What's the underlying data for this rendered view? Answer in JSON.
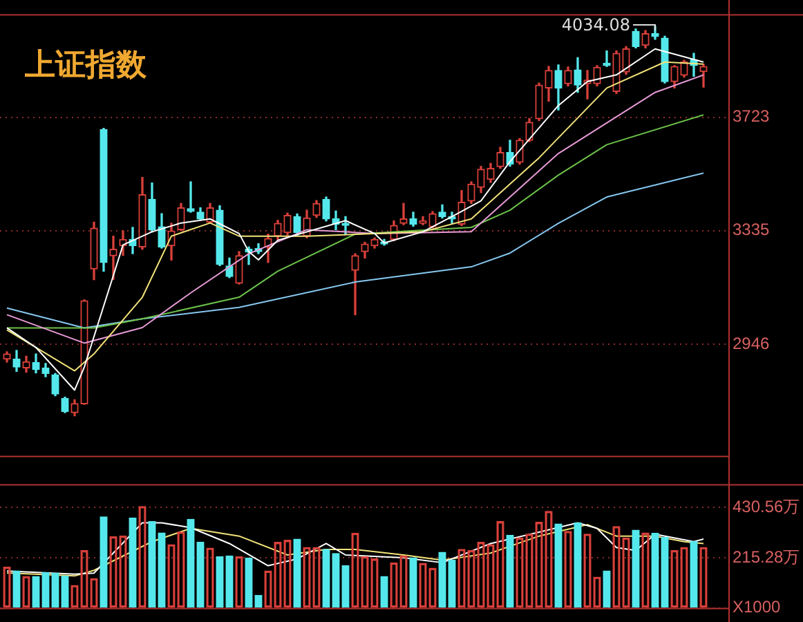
{
  "chart_data": [
    {
      "type": "candlestick",
      "title": "上证指数",
      "categories": [
        null,
        null,
        null,
        null,
        null,
        null,
        null,
        null,
        null,
        null,
        null,
        null,
        null,
        null,
        null,
        null,
        null,
        null,
        null,
        null,
        null,
        null,
        null,
        null,
        null,
        null,
        null,
        null,
        null,
        null,
        null,
        null,
        null,
        null,
        null,
        null,
        null,
        null,
        null,
        null,
        null,
        null,
        null,
        null,
        null,
        null,
        null,
        null,
        null,
        null,
        null,
        null,
        null,
        null,
        null,
        null,
        null,
        null,
        null,
        null,
        null,
        null,
        null,
        null,
        null,
        null,
        null,
        null,
        null,
        null,
        null,
        null,
        null
      ],
      "ohlc": [
        [
          2895,
          2920,
          2885,
          2913
        ],
        [
          2895,
          2925,
          2853,
          2868
        ],
        [
          2865,
          2905,
          2850,
          2886
        ],
        [
          2883,
          2913,
          2848,
          2859
        ],
        [
          2865,
          2880,
          2835,
          2846
        ],
        [
          2841,
          2846,
          2770,
          2776
        ],
        [
          2761,
          2765,
          2712,
          2716
        ],
        [
          2712,
          2756,
          2701,
          2743
        ],
        [
          2742,
          3098,
          2740,
          3095
        ],
        [
          3204,
          3364,
          3167,
          3343
        ],
        [
          3681,
          3685,
          3196,
          3226
        ],
        [
          3249,
          3316,
          3168,
          3271
        ],
        [
          3283,
          3334,
          3250,
          3305
        ],
        [
          3305,
          3346,
          3256,
          3283
        ],
        [
          3279,
          3517,
          3271,
          3458
        ],
        [
          3442,
          3498,
          3330,
          3338
        ],
        [
          3348,
          3393,
          3275,
          3279
        ],
        [
          3283,
          3360,
          3234,
          3334
        ],
        [
          3338,
          3428,
          3335,
          3413
        ],
        [
          3410,
          3502,
          3398,
          3401
        ],
        [
          3398,
          3413,
          3372,
          3375
        ],
        [
          3364,
          3428,
          3360,
          3413
        ],
        [
          3405,
          3420,
          3215,
          3219
        ],
        [
          3214,
          3241,
          3174,
          3178
        ],
        [
          3155,
          3263,
          3152,
          3249
        ],
        [
          3271,
          3279,
          3219,
          3262
        ],
        [
          3274,
          3290,
          3256,
          3263
        ],
        [
          3279,
          3323,
          3226,
          3308
        ],
        [
          3316,
          3370,
          3305,
          3360
        ],
        [
          3328,
          3395,
          3320,
          3387
        ],
        [
          3383,
          3392,
          3320,
          3328
        ],
        [
          3316,
          3405,
          3310,
          3378
        ],
        [
          3387,
          3438,
          3380,
          3428
        ],
        [
          3442,
          3450,
          3368,
          3375
        ],
        [
          3375,
          3402,
          3338,
          3357
        ],
        [
          3360,
          3383,
          3323,
          3353
        ],
        [
          3199,
          3256,
          3047,
          3249
        ],
        [
          3263,
          3295,
          3241,
          3289
        ],
        [
          3283,
          3310,
          3275,
          3305
        ],
        [
          3296,
          3305,
          3285,
          3289
        ],
        [
          3305,
          3368,
          3300,
          3353
        ],
        [
          3360,
          3428,
          3355,
          3375
        ],
        [
          3375,
          3398,
          3350,
          3357
        ],
        [
          3360,
          3383,
          3355,
          3368
        ],
        [
          3348,
          3400,
          3344,
          3393
        ],
        [
          3398,
          3423,
          3378,
          3383
        ],
        [
          3383,
          3398,
          3360,
          3375
        ],
        [
          3357,
          3472,
          3352,
          3432
        ],
        [
          3436,
          3502,
          3428,
          3494
        ],
        [
          3483,
          3555,
          3465,
          3545
        ],
        [
          3510,
          3565,
          3500,
          3548
        ],
        [
          3554,
          3620,
          3548,
          3602
        ],
        [
          3602,
          3644,
          3555,
          3562
        ],
        [
          3569,
          3650,
          3562,
          3644
        ],
        [
          3644,
          3718,
          3640,
          3706
        ],
        [
          3718,
          3840,
          3712,
          3833
        ],
        [
          3823,
          3897,
          3778,
          3883
        ],
        [
          3883,
          3902,
          3748,
          3823
        ],
        [
          3838,
          3895,
          3830,
          3883
        ],
        [
          3885,
          3927,
          3808,
          3833
        ],
        [
          3838,
          3883,
          3786,
          3850
        ],
        [
          3838,
          3900,
          3830,
          3894
        ],
        [
          3908,
          3950,
          3897,
          3900
        ],
        [
          3811,
          3950,
          3805,
          3942
        ],
        [
          3878,
          3965,
          3870,
          3957
        ],
        [
          4017,
          4025,
          3960,
          3965
        ],
        [
          3969,
          4020,
          3960,
          4009
        ],
        [
          4009,
          4034.08,
          3990,
          3999
        ],
        [
          3994,
          4000,
          3840,
          3845
        ],
        [
          3845,
          3900,
          3823,
          3897
        ],
        [
          3867,
          3918,
          3860,
          3912
        ],
        [
          3920,
          3942,
          3863,
          3900
        ],
        [
          3879,
          3905,
          3826,
          3897
        ]
      ],
      "colors": [
        "#d9403a",
        "#54e8ec",
        "#d9403a",
        "#54e8ec",
        "#54e8ec",
        "#54e8ec",
        "#54e8ec",
        "#d9403a",
        "#d9403a",
        "#d9403a",
        "#54e8ec",
        "#d9403a",
        "#d9403a",
        "#54e8ec",
        "#d9403a",
        "#54e8ec",
        "#54e8ec",
        "#d9403a",
        "#d9403a",
        "#54e8ec",
        "#54e8ec",
        "#d9403a",
        "#54e8ec",
        "#54e8ec",
        "#d9403a",
        "#54e8ec",
        "#54e8ec",
        "#d9403a",
        "#d9403a",
        "#d9403a",
        "#54e8ec",
        "#d9403a",
        "#d9403a",
        "#54e8ec",
        "#54e8ec",
        "#54e8ec",
        "#d9403a",
        "#d9403a",
        "#d9403a",
        "#54e8ec",
        "#d9403a",
        "#d9403a",
        "#54e8ec",
        "#d9403a",
        "#d9403a",
        "#54e8ec",
        "#54e8ec",
        "#d9403a",
        "#d9403a",
        "#d9403a",
        "#d9403a",
        "#d9403a",
        "#54e8ec",
        "#d9403a",
        "#d9403a",
        "#d9403a",
        "#d9403a",
        "#54e8ec",
        "#d9403a",
        "#54e8ec",
        "#d9403a",
        "#d9403a",
        "#54e8ec",
        "#d9403a",
        "#d9403a",
        "#54e8ec",
        "#d9403a",
        "#54e8ec",
        "#54e8ec",
        "#d9403a",
        "#d9403a",
        "#54e8ec",
        "#d9403a"
      ],
      "series": [
        {
          "type": "line",
          "color": "#ffffff",
          "values": [
            3002,
            null,
            null,
            2935,
            null,
            null,
            null,
            2789,
            2868,
            null,
            null,
            3181,
            3286,
            null,
            null,
            3331,
            null,
            null,
            3361,
            null,
            null,
            3375,
            null,
            null,
            3325,
            3263,
            3235,
            null,
            3302,
            null,
            null,
            null,
            null,
            null,
            null,
            3369,
            null,
            null,
            3325,
            3293,
            null,
            null,
            null,
            3331,
            null,
            null,
            3383,
            null,
            null,
            3437,
            null,
            null,
            3571,
            null,
            null,
            null,
            null,
            3763,
            null,
            null,
            3845,
            null,
            null,
            3868,
            null,
            null,
            null,
            3957,
            null,
            null,
            null,
            null,
            3912
          ]
        },
        {
          "type": "line",
          "color": "#f2e27a",
          "values": [
            2995,
            null,
            null,
            null,
            null,
            null,
            null,
            2855,
            null,
            2913,
            null,
            null,
            null,
            null,
            3107,
            null,
            null,
            3316,
            null,
            null,
            null,
            3361,
            null,
            null,
            3316,
            null,
            null,
            null,
            null,
            null,
            null,
            3316,
            null,
            null,
            null,
            null,
            null,
            null,
            3325,
            null,
            null,
            null,
            null,
            3331,
            null,
            null,
            null,
            null,
            3375,
            null,
            null,
            null,
            null,
            null,
            null,
            3584,
            null,
            null,
            null,
            null,
            null,
            null,
            3823,
            null,
            null,
            null,
            null,
            null,
            3912,
            null,
            null,
            null,
            3905
          ]
        },
        {
          "type": "line",
          "color": "#e79ad6",
          "values": [
            3047,
            null,
            null,
            null,
            null,
            null,
            null,
            null,
            2950,
            null,
            null,
            null,
            null,
            null,
            3003,
            null,
            null,
            null,
            null,
            3122,
            null,
            null,
            null,
            null,
            null,
            3256,
            null,
            null,
            null,
            null,
            null,
            3338,
            null,
            null,
            null,
            null,
            null,
            null,
            3325,
            null,
            null,
            null,
            null,
            null,
            null,
            null,
            null,
            null,
            3331,
            null,
            null,
            null,
            null,
            null,
            null,
            null,
            null,
            3599,
            null,
            null,
            null,
            null,
            null,
            null,
            null,
            null,
            null,
            3808,
            null,
            null,
            null,
            null,
            3868
          ]
        },
        {
          "type": "line",
          "color": "#6cc24a",
          "values": [
            3002,
            null,
            null,
            null,
            null,
            null,
            null,
            null,
            null,
            3002,
            null,
            null,
            null,
            null,
            3033,
            null,
            null,
            null,
            null,
            null,
            null,
            null,
            null,
            null,
            3107,
            null,
            null,
            null,
            3196,
            null,
            null,
            null,
            null,
            null,
            null,
            null,
            3323,
            null,
            null,
            null,
            null,
            null,
            null,
            null,
            null,
            null,
            null,
            null,
            3346,
            null,
            null,
            null,
            3405,
            null,
            null,
            null,
            null,
            3525,
            null,
            null,
            null,
            null,
            3629,
            null,
            null,
            null,
            null,
            null,
            null,
            null,
            null,
            null,
            3731
          ]
        },
        {
          "type": "line",
          "color": "#86c8f0",
          "values": [
            3070,
            null,
            null,
            null,
            null,
            null,
            null,
            null,
            3002,
            null,
            null,
            null,
            null,
            null,
            3033,
            null,
            null,
            null,
            null,
            null,
            null,
            null,
            null,
            null,
            3072,
            null,
            null,
            null,
            null,
            null,
            null,
            null,
            null,
            null,
            null,
            null,
            3159,
            null,
            null,
            null,
            null,
            null,
            null,
            null,
            null,
            null,
            null,
            null,
            3211,
            null,
            null,
            null,
            3258,
            null,
            null,
            null,
            null,
            3360,
            null,
            null,
            null,
            null,
            3450,
            null,
            null,
            null,
            null,
            null,
            null,
            null,
            null,
            null,
            3532
          ]
        }
      ],
      "ylim": [
        2564,
        4076
      ],
      "yticks": [
        2946,
        3335,
        3723
      ],
      "grid": "y",
      "tick_labels": "y",
      "legend": false,
      "annotations": [
        "4034.08"
      ]
    },
    {
      "type": "bar",
      "categories": [
        null,
        null,
        null,
        null,
        null,
        null,
        null,
        null,
        null,
        null,
        null,
        null,
        null,
        null,
        null,
        null,
        null,
        null,
        null,
        null,
        null,
        null,
        null,
        null,
        null,
        null,
        null,
        null,
        null,
        null,
        null,
        null,
        null,
        null,
        null,
        null,
        null,
        null,
        null,
        null,
        null,
        null,
        null,
        null,
        null,
        null,
        null,
        null,
        null,
        null,
        null,
        null,
        null,
        null,
        null,
        null,
        null,
        null,
        null,
        null,
        null,
        null,
        null,
        null,
        null,
        null,
        null,
        null,
        null,
        null,
        null,
        null,
        null
      ],
      "values": [
        175,
        158,
        135,
        135,
        152,
        149,
        137,
        96,
        246,
        126,
        390,
        305,
        308,
        385,
        435,
        370,
        321,
        271,
        325,
        380,
        282,
        256,
        219,
        223,
        219,
        214,
        54,
        158,
        281,
        290,
        295,
        259,
        259,
        251,
        233,
        181,
        320,
        219,
        210,
        135,
        193,
        223,
        215,
        191,
        170,
        238,
        205,
        251,
        246,
        281,
        271,
        370,
        311,
        300,
        316,
        367,
        414,
        360,
        328,
        365,
        316,
        132,
        158,
        349,
        300,
        333,
        321,
        320,
        303,
        246,
        259,
        284,
        259
      ],
      "colors": [
        "#d9403a",
        "#54e8ec",
        "#d9403a",
        "#54e8ec",
        "#54e8ec",
        "#54e8ec",
        "#54e8ec",
        "#d9403a",
        "#d9403a",
        "#d9403a",
        "#54e8ec",
        "#d9403a",
        "#d9403a",
        "#54e8ec",
        "#d9403a",
        "#54e8ec",
        "#54e8ec",
        "#d9403a",
        "#d9403a",
        "#54e8ec",
        "#54e8ec",
        "#d9403a",
        "#54e8ec",
        "#54e8ec",
        "#d9403a",
        "#54e8ec",
        "#54e8ec",
        "#d9403a",
        "#d9403a",
        "#d9403a",
        "#54e8ec",
        "#d9403a",
        "#d9403a",
        "#54e8ec",
        "#54e8ec",
        "#54e8ec",
        "#d9403a",
        "#d9403a",
        "#d9403a",
        "#54e8ec",
        "#d9403a",
        "#d9403a",
        "#54e8ec",
        "#d9403a",
        "#d9403a",
        "#54e8ec",
        "#54e8ec",
        "#d9403a",
        "#d9403a",
        "#d9403a",
        "#d9403a",
        "#d9403a",
        "#54e8ec",
        "#d9403a",
        "#d9403a",
        "#d9403a",
        "#d9403a",
        "#54e8ec",
        "#d9403a",
        "#54e8ec",
        "#d9403a",
        "#d9403a",
        "#54e8ec",
        "#d9403a",
        "#d9403a",
        "#54e8ec",
        "#d9403a",
        "#54e8ec",
        "#54e8ec",
        "#d9403a",
        "#d9403a",
        "#54e8ec",
        "#d9403a"
      ],
      "series": [
        {
          "type": "line",
          "color": "#ffffff",
          "values": [
            158,
            null,
            null,
            null,
            null,
            null,
            null,
            145,
            null,
            149,
            null,
            null,
            null,
            null,
            365,
            null,
            365,
            null,
            null,
            344,
            null,
            null,
            null,
            276,
            null,
            null,
            null,
            181,
            null,
            null,
            210,
            null,
            null,
            276,
            null,
            227,
            null,
            null,
            null,
            null,
            null,
            215,
            null,
            null,
            null,
            194,
            null,
            null,
            null,
            null,
            276,
            null,
            null,
            null,
            null,
            325,
            null,
            null,
            null,
            365,
            null,
            341,
            null,
            259,
            null,
            246,
            null,
            316,
            null,
            null,
            null,
            284,
            295
          ]
        },
        {
          "type": "line",
          "color": "#f2e27a",
          "values": [
            150,
            null,
            null,
            null,
            null,
            null,
            null,
            137,
            null,
            161,
            null,
            null,
            null,
            null,
            null,
            284,
            null,
            null,
            null,
            341,
            null,
            null,
            null,
            null,
            308,
            null,
            null,
            null,
            null,
            227,
            null,
            null,
            null,
            251,
            null,
            null,
            251,
            null,
            null,
            null,
            null,
            227,
            null,
            null,
            null,
            205,
            null,
            null,
            null,
            null,
            235,
            null,
            null,
            null,
            null,
            308,
            null,
            null,
            null,
            null,
            357,
            null,
            null,
            308,
            null,
            null,
            null,
            308,
            null,
            null,
            284,
            null,
            276
          ]
        }
      ],
      "ylim": [
        0,
        531
      ],
      "yticks": [
        {
          "value": 0,
          "label": "X1000"
        },
        {
          "value": 215.28,
          "label": "215.28万"
        },
        {
          "value": 430.56,
          "label": "430.56万"
        }
      ],
      "grid": "y",
      "tick_labels": "y",
      "legend": false
    }
  ]
}
